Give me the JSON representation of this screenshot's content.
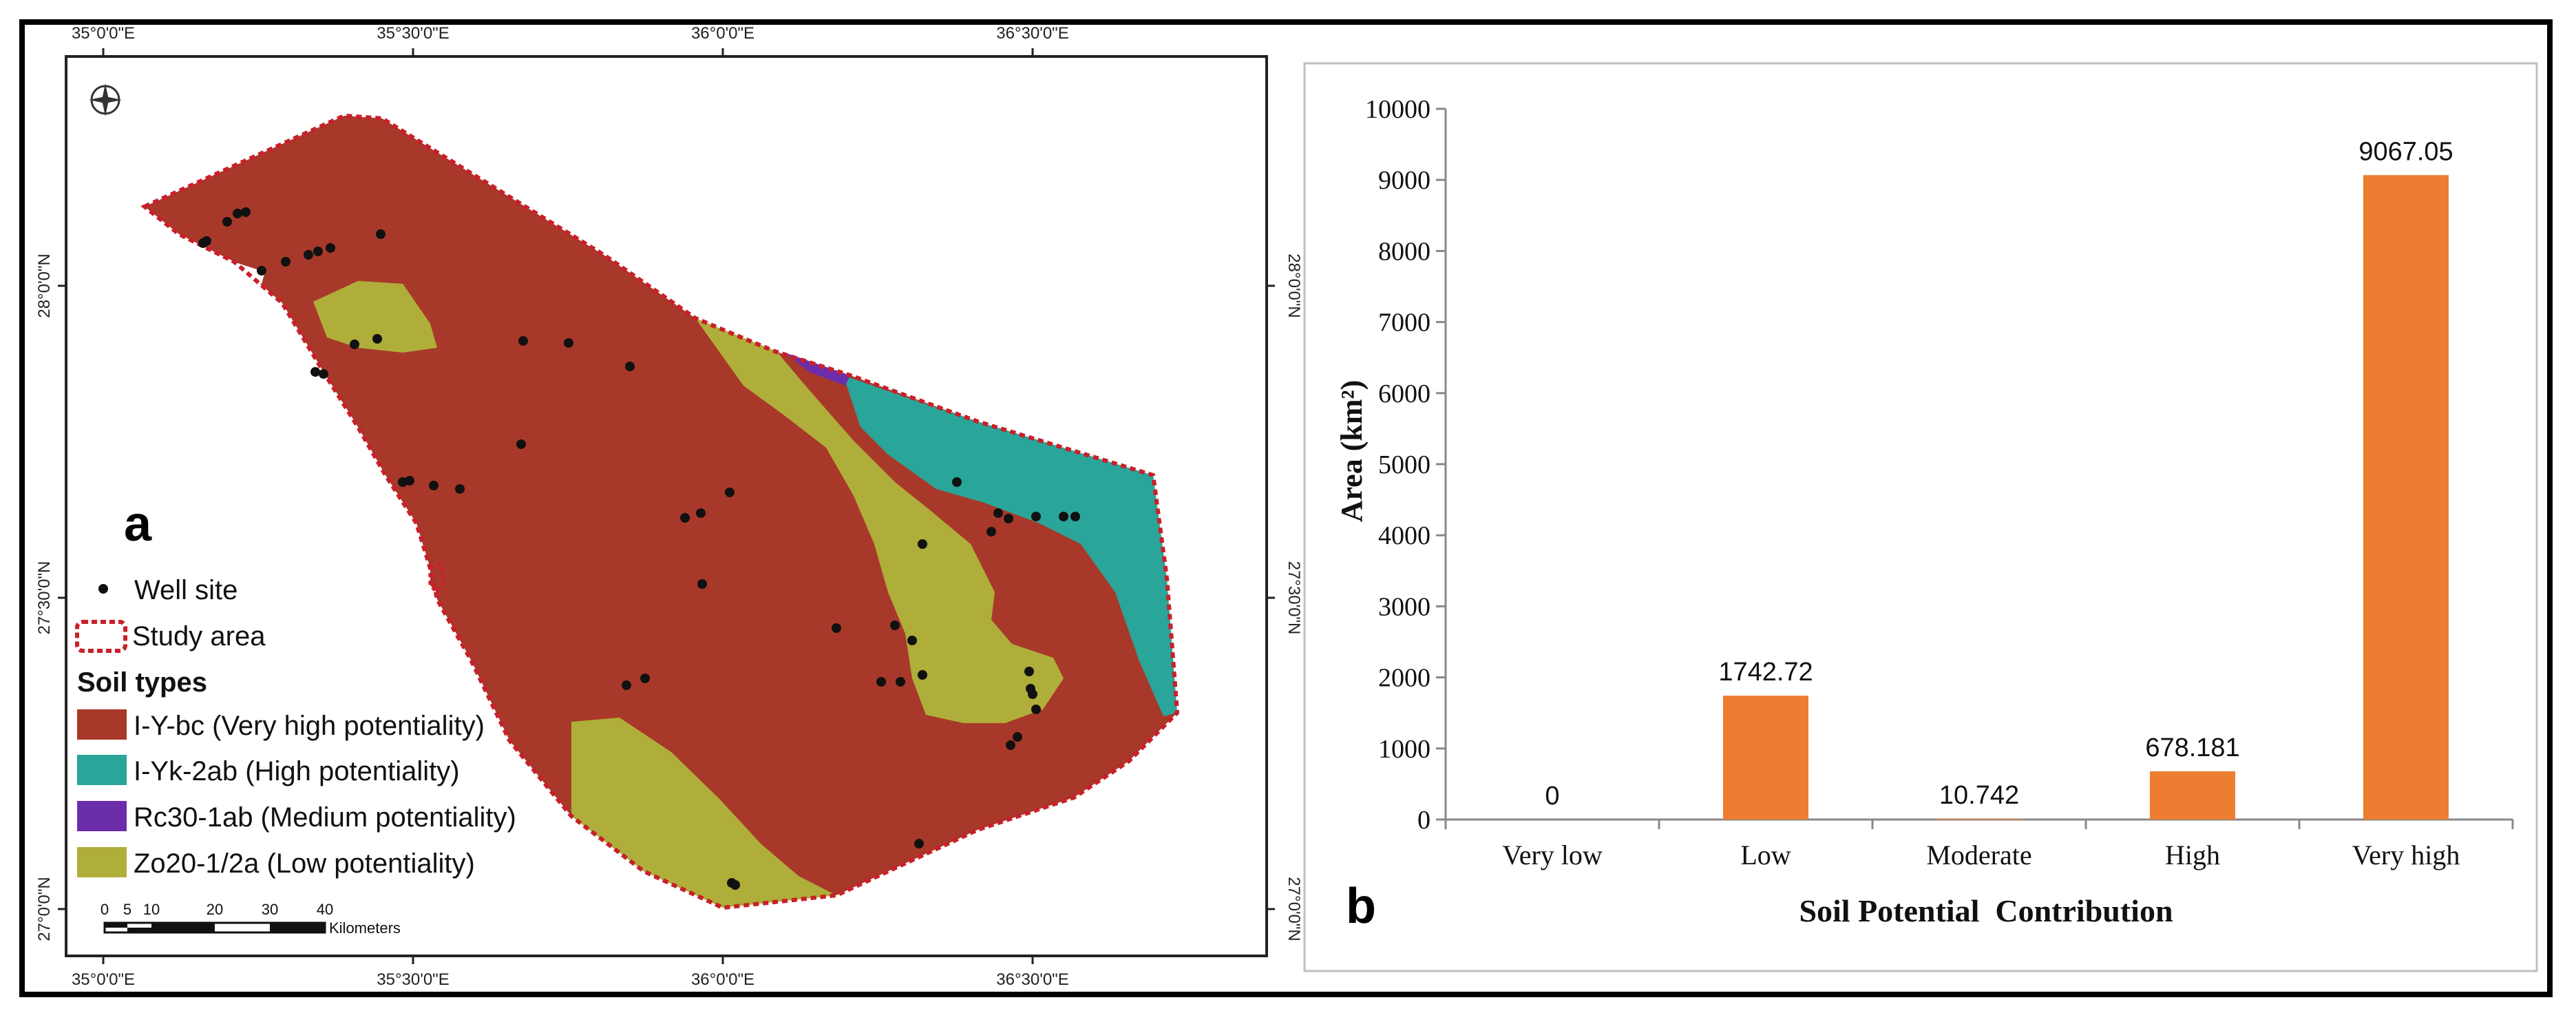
{
  "panel_a": {
    "label": "a",
    "top_ticks": [
      "35°0'0\"E",
      "35°30'0\"E",
      "36°0'0\"E",
      "36°30'0\"E"
    ],
    "bottom_ticks": [
      "35°0'0\"E",
      "35°30'0\"E",
      "36°0'0\"E",
      "36°30'0\"E"
    ],
    "left_ticks": [
      "28°0'0\"N",
      "27°30'0\"N",
      "27°0'0\"N"
    ],
    "right_ticks": [
      "28°0'0\"N",
      "27°30'0\"N",
      "27°0'0\"N"
    ],
    "legend": {
      "well_site": "Well site",
      "study_area": "Study area",
      "soil_types_title": "Soil types",
      "soil_types": [
        {
          "label": "I-Y-bc (Very high potentiality)",
          "color": "#a8392a"
        },
        {
          "label": "I-Yk-2ab (High potentiality)",
          "color": "#2aa59a"
        },
        {
          "label": "Rc30-1ab (Medium potentiality)",
          "color": "#6c2dab"
        },
        {
          "label": "Zo20-1/2a (Low potentiality)",
          "color": "#b0ae3a"
        }
      ]
    },
    "scale_bar": {
      "ticks": [
        "0",
        "5",
        "10",
        "20",
        "30",
        "40"
      ],
      "unit": "Kilometers"
    },
    "colors": {
      "very_high": "#a8392a",
      "high": "#2aa59a",
      "medium": "#6c2dab",
      "low": "#b0ae3a",
      "boundary": "#c8202a"
    }
  },
  "panel_b": {
    "label": "b",
    "chart_data": {
      "type": "bar",
      "categories": [
        "Very low",
        "Low",
        "Moderate",
        "High",
        "Very high"
      ],
      "values": [
        0,
        1742.72,
        10.742,
        678.181,
        9067.05
      ],
      "value_labels": [
        "0",
        "1742.72",
        "10.742",
        "678.181",
        "9067.05"
      ],
      "xlabel": "Soil Potential  Contribution",
      "ylabel": "Area (km²)",
      "ylim": [
        0,
        10000
      ],
      "yticks": [
        0,
        1000,
        2000,
        3000,
        4000,
        5000,
        6000,
        7000,
        8000,
        9000,
        10000
      ],
      "bar_color": "#ed7d31",
      "grid": false
    }
  }
}
